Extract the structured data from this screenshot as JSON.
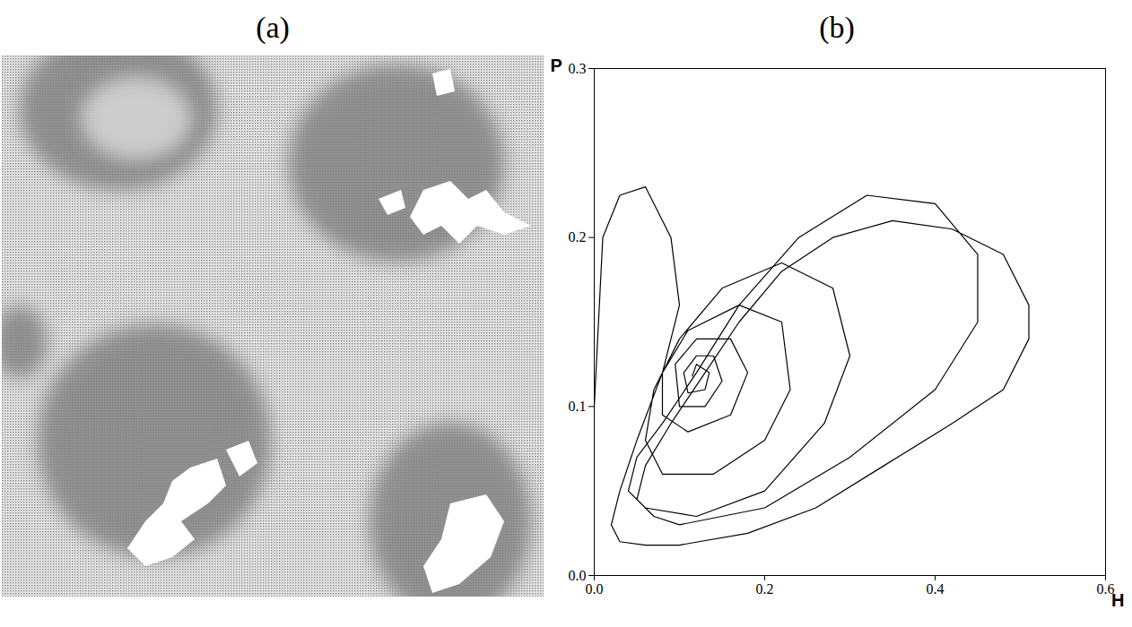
{
  "chart_data": [
    {
      "type": "image",
      "title": "(a)"
    },
    {
      "type": "line",
      "title": "(b)",
      "x_label": "H",
      "y_label": "P",
      "color": "#000000",
      "xlim": [
        0,
        0.6
      ],
      "ylim": [
        0,
        0.3
      ],
      "xticks": [
        {
          "value": 0,
          "label": "0.0"
        },
        0.2,
        0.4,
        0.6
      ],
      "yticks": [
        {
          "value": 0,
          "label": "0.0"
        },
        0.1,
        0.2,
        0.3
      ],
      "x": [
        0.0,
        0.005,
        0.01,
        0.03,
        0.06,
        0.09,
        0.1,
        0.08,
        0.05,
        0.03,
        0.02,
        0.03,
        0.06,
        0.1,
        0.18,
        0.26,
        0.34,
        0.42,
        0.48,
        0.51,
        0.51,
        0.48,
        0.42,
        0.35,
        0.28,
        0.22,
        0.17,
        0.13,
        0.09,
        0.06,
        0.05,
        0.07,
        0.1,
        0.2,
        0.3,
        0.4,
        0.45,
        0.45,
        0.4,
        0.32,
        0.24,
        0.17,
        0.12,
        0.08,
        0.05,
        0.04,
        0.06,
        0.12,
        0.2,
        0.27,
        0.3,
        0.28,
        0.22,
        0.15,
        0.1,
        0.07,
        0.06,
        0.08,
        0.14,
        0.2,
        0.23,
        0.22,
        0.17,
        0.11,
        0.08,
        0.08,
        0.11,
        0.16,
        0.18,
        0.16,
        0.12,
        0.095,
        0.1,
        0.13,
        0.15,
        0.14,
        0.12,
        0.105,
        0.11,
        0.13,
        0.135,
        0.12,
        0.115
      ],
      "values": [
        0.1,
        0.15,
        0.2,
        0.225,
        0.23,
        0.2,
        0.16,
        0.12,
        0.08,
        0.05,
        0.03,
        0.02,
        0.018,
        0.018,
        0.025,
        0.04,
        0.065,
        0.09,
        0.11,
        0.14,
        0.16,
        0.19,
        0.205,
        0.21,
        0.2,
        0.18,
        0.15,
        0.12,
        0.09,
        0.065,
        0.045,
        0.035,
        0.03,
        0.04,
        0.07,
        0.11,
        0.15,
        0.19,
        0.22,
        0.225,
        0.2,
        0.16,
        0.12,
        0.09,
        0.07,
        0.05,
        0.04,
        0.035,
        0.05,
        0.09,
        0.13,
        0.17,
        0.185,
        0.17,
        0.14,
        0.11,
        0.08,
        0.06,
        0.06,
        0.08,
        0.11,
        0.15,
        0.16,
        0.145,
        0.12,
        0.095,
        0.085,
        0.095,
        0.12,
        0.14,
        0.14,
        0.125,
        0.1,
        0.1,
        0.115,
        0.13,
        0.13,
        0.12,
        0.108,
        0.11,
        0.12,
        0.125,
        0.118
      ]
    }
  ]
}
